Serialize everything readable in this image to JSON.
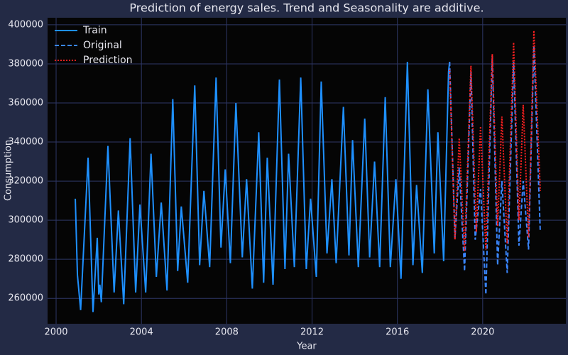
{
  "chart_data": {
    "type": "line",
    "title": "Prediction of energy sales. Trend and Seasonality are additive.",
    "x_label": "Year",
    "y_label": "Consumption",
    "xlim": [
      1999.6,
      2023.9
    ],
    "xticks": [
      2000,
      2004,
      2008,
      2012,
      2016,
      2020
    ],
    "ylim": [
      247000,
      403600
    ],
    "yticks": [
      260000,
      280000,
      300000,
      320000,
      340000,
      360000,
      380000,
      400000
    ],
    "grid": true,
    "legend": "upper left",
    "series": [
      {
        "name": "Train",
        "color": "#1e90ff",
        "dash": "solid",
        "x": [
          2000.9,
          2001.0,
          2001.15,
          2001.5,
          2001.73,
          2001.93,
          2002.0,
          2002.05,
          2002.12,
          2002.43,
          2002.72,
          2002.92,
          2003.17,
          2003.47,
          2003.73,
          2003.93,
          2004.2,
          2004.45,
          2004.7,
          2004.93,
          2005.2,
          2005.47,
          2005.7,
          2005.87,
          2006.17,
          2006.5,
          2006.73,
          2006.93,
          2007.2,
          2007.5,
          2007.73,
          2007.93,
          2008.17,
          2008.43,
          2008.73,
          2008.93,
          2009.2,
          2009.5,
          2009.73,
          2009.9,
          2010.17,
          2010.47,
          2010.73,
          2010.9,
          2011.17,
          2011.47,
          2011.73,
          2011.93,
          2012.2,
          2012.43,
          2012.7,
          2012.93,
          2013.13,
          2013.47,
          2013.73,
          2013.9,
          2014.17,
          2014.47,
          2014.7,
          2014.93,
          2015.17,
          2015.43,
          2015.67,
          2015.93,
          2016.17,
          2016.47,
          2016.73,
          2016.9,
          2017.17,
          2017.43,
          2017.73,
          2017.9,
          2018.17,
          2018.4,
          2018.45
        ],
        "values": [
          311000,
          272000,
          254000,
          332000,
          253000,
          291000,
          262000,
          267000,
          258000,
          338000,
          263000,
          305000,
          257000,
          342000,
          263000,
          308000,
          263000,
          334000,
          271000,
          309000,
          264000,
          362000,
          274000,
          307000,
          268000,
          369000,
          277000,
          315000,
          276000,
          373000,
          286000,
          326000,
          278000,
          360000,
          281000,
          321000,
          265000,
          345000,
          268000,
          332000,
          267000,
          372000,
          275000,
          334000,
          276000,
          373000,
          275000,
          311000,
          271000,
          371000,
          283000,
          321000,
          278000,
          358000,
          282000,
          341000,
          276000,
          352000,
          281000,
          330000,
          276000,
          363000,
          276000,
          321000,
          270000,
          381000,
          277000,
          318000,
          273000,
          367000,
          283000,
          345000,
          279000,
          376000,
          381000
        ]
      },
      {
        "name": "Original",
        "color": "#3a86ff",
        "dash": "dashed",
        "x": [
          2018.45,
          2018.7,
          2018.9,
          2019.15,
          2019.45,
          2019.65,
          2019.9,
          2020.15,
          2020.45,
          2020.7,
          2020.9,
          2021.15,
          2021.45,
          2021.7,
          2021.9,
          2022.15,
          2022.4,
          2022.7
        ],
        "values": [
          381000,
          291000,
          327000,
          274000,
          376000,
          290000,
          316000,
          262000,
          384000,
          277000,
          320000,
          273000,
          381000,
          287000,
          320000,
          285000,
          389000,
          294000
        ]
      },
      {
        "name": "Prediction",
        "color": "#ff2020",
        "dash": "dotted",
        "x": [
          2018.45,
          2018.7,
          2018.9,
          2019.15,
          2019.45,
          2019.7,
          2019.9,
          2020.15,
          2020.45,
          2020.7,
          2020.9,
          2021.15,
          2021.45,
          2021.7,
          2021.9,
          2022.15,
          2022.4,
          2022.7
        ],
        "values": [
          377000,
          290000,
          342000,
          284000,
          379000,
          294000,
          348000,
          285000,
          385000,
          297000,
          353000,
          288000,
          391000,
          300000,
          359000,
          291000,
          397000,
          315000
        ]
      }
    ]
  }
}
